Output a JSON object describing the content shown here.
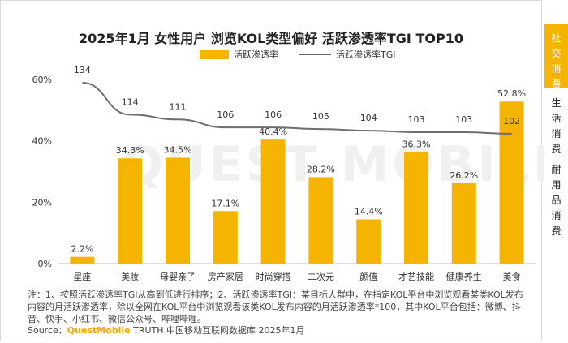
{
  "chart_data": {
    "type": "bar",
    "title": "2025年1月 女性用户 浏览KOL类型偏好 活跃渗透率TGI TOP10",
    "categories": [
      "星座",
      "美妆",
      "母婴亲子",
      "房产家居",
      "时尚穿搭",
      "二次元",
      "颜值",
      "才艺技能",
      "健康养生",
      "美食"
    ],
    "series": [
      {
        "name": "活跃渗透率",
        "type": "bar",
        "values": [
          2.2,
          34.3,
          34.5,
          17.1,
          40.4,
          28.2,
          14.4,
          36.3,
          26.2,
          52.8
        ],
        "labels": [
          "2.2%",
          "34.3%",
          "34.5%",
          "17.1%",
          "40.4%",
          "28.2%",
          "14.4%",
          "36.3%",
          "26.2%",
          "52.8%"
        ]
      },
      {
        "name": "活跃渗透率TGI",
        "type": "line",
        "values": [
          134,
          114,
          111,
          106,
          106,
          105,
          104,
          103,
          103,
          102
        ]
      }
    ],
    "y_ticks": [
      "0%",
      "20%",
      "40%",
      "60%"
    ],
    "ylim": [
      0,
      60
    ],
    "xlabel": "",
    "ylabel": "",
    "grid": false,
    "legend_position": "top",
    "colors": {
      "bar": "#F5B400",
      "line": "#6E6E6E"
    }
  },
  "watermark": "QUEST MOBILE",
  "note": "注：1、按照活跃渗透率TGI从高到低进行排序；2、活跃渗透率TGI：某目标人群中，在指定KOL平台中浏览观看某类KOL发布内容的月活跃渗透率，除以全网在KOL平台中浏览观看该类KOL发布内容的月活跃渗透率*100，其中KOL平台包括：微博、抖音、快手、小红书、微信公众号、哔哩哔哩。",
  "source": {
    "prefix": "Source：",
    "brand": "QuestMobile",
    "rest": " TRUTH 中国移动互联网数据库 2025年1月"
  },
  "side_tabs": [
    {
      "label": "社交消费",
      "chars": [
        "社",
        "交",
        "消",
        "费"
      ],
      "active": true
    },
    {
      "label": "生活消费",
      "chars": [
        "生",
        "活",
        "消",
        "费"
      ],
      "active": false
    },
    {
      "label": "耐用品消费",
      "chars": [
        "耐",
        "用",
        "品",
        "消",
        "费"
      ],
      "active": false
    }
  ]
}
